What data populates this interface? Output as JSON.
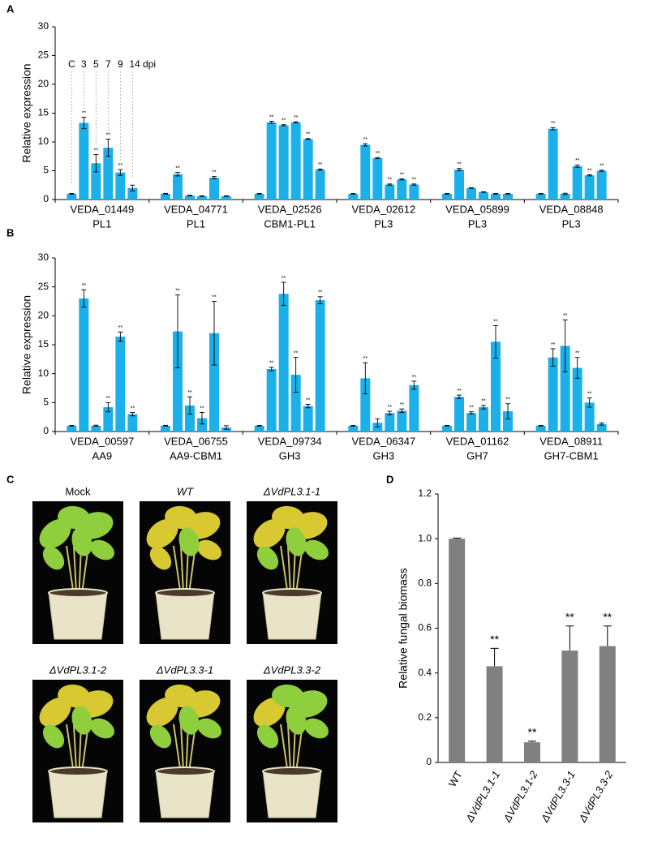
{
  "panel_labels": [
    "A",
    "B",
    "C",
    "D"
  ],
  "photos": [
    {
      "label": "Mock"
    },
    {
      "label": "WT"
    },
    {
      "label": "ΔVdPL3.1-1"
    },
    {
      "label": "ΔVdPL3.1-2"
    },
    {
      "label": "ΔVdPL3.3-1"
    },
    {
      "label": "ΔVdPL3.3-2"
    }
  ],
  "chart_data": [
    {
      "type": "grouped_bar",
      "ylabel": "Relative expression",
      "categories": [
        "VEDA_01449",
        "VEDA_04771",
        "VEDA_02526",
        "VEDA_02612",
        "VEDA_05899",
        "VEDA_08848"
      ],
      "category_sublabels": [
        "PL1",
        "PL1",
        "CBM1-PL1",
        "PL3",
        "PL3",
        "PL3"
      ],
      "ylim": [
        0,
        30
      ],
      "yticks": [
        0,
        5,
        10,
        15,
        20,
        25,
        30
      ],
      "series": [
        {
          "name": "C",
          "color": "#1cb0ea",
          "values": [
            1,
            1,
            1,
            1,
            1,
            1
          ],
          "errors": [
            0.05,
            0.05,
            0.05,
            0.05,
            0.05,
            0.05
          ],
          "annotations": [
            null,
            null,
            null,
            null,
            null,
            null
          ]
        },
        {
          "name": "3",
          "color": "#1cb0ea",
          "values": [
            13.3,
            4.4,
            13.4,
            9.5,
            5.2,
            12.3
          ],
          "errors": [
            1,
            0.3,
            0.2,
            0.2,
            0.2,
            0.2
          ],
          "annotations": [
            "**",
            "**",
            "**",
            "**",
            "**",
            "**"
          ]
        },
        {
          "name": "5",
          "color": "#1cb0ea",
          "values": [
            6.3,
            0.7,
            12.9,
            7.2,
            2,
            1
          ],
          "errors": [
            1.5,
            0.05,
            0.1,
            0.1,
            0.05,
            0.1
          ],
          "annotations": [
            "**",
            null,
            "**",
            "**",
            null,
            null
          ]
        },
        {
          "name": "7",
          "color": "#1cb0ea",
          "values": [
            9,
            0.6,
            13.4,
            2.6,
            1.3,
            5.8
          ],
          "errors": [
            1.5,
            0.05,
            0.1,
            0.1,
            0.05,
            0.2
          ],
          "annotations": [
            "**",
            null,
            "**",
            "**",
            null,
            "**"
          ]
        },
        {
          "name": "9",
          "color": "#1cb0ea",
          "values": [
            4.7,
            3.8,
            10.5,
            3.5,
            1,
            4.2
          ],
          "errors": [
            0.5,
            0.2,
            0.1,
            0.1,
            0.05,
            0.1
          ],
          "annotations": [
            "**",
            "**",
            "**",
            "**",
            null,
            "**"
          ]
        },
        {
          "name": "14 dpi",
          "color": "#1cb0ea",
          "values": [
            2,
            0.6,
            5.2,
            2.6,
            1,
            5
          ],
          "errors": [
            0.5,
            0.05,
            0.1,
            0.1,
            0.05,
            0.1
          ],
          "annotations": [
            null,
            null,
            "**",
            "**",
            null,
            "**"
          ]
        }
      ]
    },
    {
      "type": "grouped_bar",
      "ylabel": "Relative expression",
      "categories": [
        "VEDA_00597",
        "VEDA_06755",
        "VEDA_09734",
        "VEDA_06347",
        "VEDA_01162",
        "VEDA_08911"
      ],
      "category_sublabels": [
        "AA9",
        "AA9-CBM1",
        "GH3",
        "GH3",
        "GH7",
        "GH7-CBM1"
      ],
      "ylim": [
        0,
        30
      ],
      "yticks": [
        0,
        5,
        10,
        15,
        20,
        25,
        30
      ],
      "series": [
        {
          "color": "#1cb0ea",
          "values": [
            1,
            1,
            1,
            1,
            1,
            1
          ],
          "errors": [
            0.05,
            0.05,
            0.05,
            0.05,
            0.05,
            0.05
          ],
          "annotations": [
            null,
            null,
            null,
            null,
            null,
            null
          ]
        },
        {
          "color": "#1cb0ea",
          "values": [
            23,
            17.3,
            10.8,
            9.2,
            6,
            12.8
          ],
          "errors": [
            1.5,
            6.3,
            0.3,
            2.7,
            0.3,
            1.5
          ],
          "annotations": [
            "**",
            "**",
            "**",
            "**",
            "**",
            "**"
          ]
        },
        {
          "color": "#1cb0ea",
          "values": [
            1,
            4.5,
            23.8,
            1.5,
            3.2,
            14.8
          ],
          "errors": [
            0.1,
            1.5,
            2,
            0.7,
            0.2,
            4.5
          ],
          "annotations": [
            null,
            "**",
            "**",
            null,
            "**",
            "**"
          ]
        },
        {
          "color": "#1cb0ea",
          "values": [
            4.2,
            2.3,
            9.8,
            3.2,
            4.2,
            11
          ],
          "errors": [
            0.8,
            1,
            3,
            0.3,
            0.3,
            1.8
          ],
          "annotations": [
            "**",
            "**",
            "**",
            "**",
            "**",
            "**"
          ]
        },
        {
          "color": "#1cb0ea",
          "values": [
            16.4,
            17,
            4.4,
            3.6,
            15.5,
            5
          ],
          "errors": [
            0.8,
            5.5,
            0.3,
            0.3,
            2.8,
            0.8
          ],
          "annotations": [
            "**",
            "**",
            "**",
            "**",
            "**",
            "**"
          ]
        },
        {
          "color": "#1cb0ea",
          "values": [
            3,
            0.7,
            22.7,
            8,
            3.5,
            1.3
          ],
          "errors": [
            0.3,
            0.3,
            0.6,
            0.7,
            1.3,
            0.2
          ],
          "annotations": [
            "**",
            null,
            "**",
            "**",
            "**",
            null
          ]
        }
      ]
    },
    {
      "type": "bar",
      "ylabel": "Relative fungal biomass",
      "color": "#808080",
      "categories": [
        "WT",
        "ΔVdPL3.1-1",
        "ΔVdPL3.1-2",
        "ΔVdPL3.3-1",
        "ΔVdPL3.3-2"
      ],
      "values": [
        1,
        0.43,
        0.09,
        0.5,
        0.52
      ],
      "errors": [
        0.003,
        0.08,
        0.005,
        0.11,
        0.09
      ],
      "annotations": [
        null,
        "**",
        "**",
        "**",
        "**"
      ],
      "ylim": [
        0,
        1.2
      ],
      "yticks": [
        0,
        0.2,
        0.4,
        0.6,
        0.8,
        {
          "value": 1,
          "label": "1.0"
        },
        1.2
      ]
    }
  ]
}
